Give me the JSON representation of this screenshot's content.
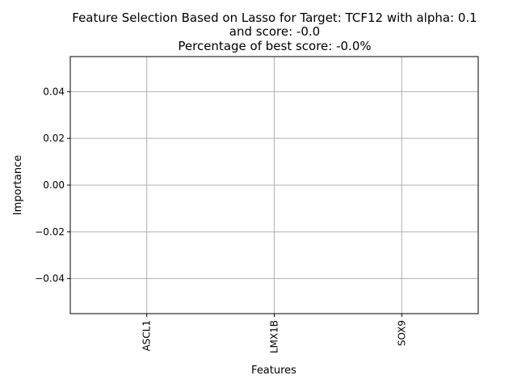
{
  "chart_data": {
    "type": "bar",
    "title": [
      "Feature Selection Based on Lasso for Target: TCF12 with alpha: 0.1",
      "and score: -0.0",
      "Percentage of best score: -0.0%"
    ],
    "xlabel": "Features",
    "ylabel": "Importance",
    "categories": [
      "ASCL1",
      "LMX1B",
      "SOX9"
    ],
    "values": [
      0.0,
      0.0,
      0.0
    ],
    "ylim": [
      -0.055,
      0.055
    ],
    "yticks": [
      -0.04,
      -0.02,
      0.0,
      0.02,
      0.04
    ],
    "ytick_labels": [
      "−0.04",
      "−0.02",
      "0.00",
      "0.02",
      "0.04"
    ],
    "grid": true
  }
}
